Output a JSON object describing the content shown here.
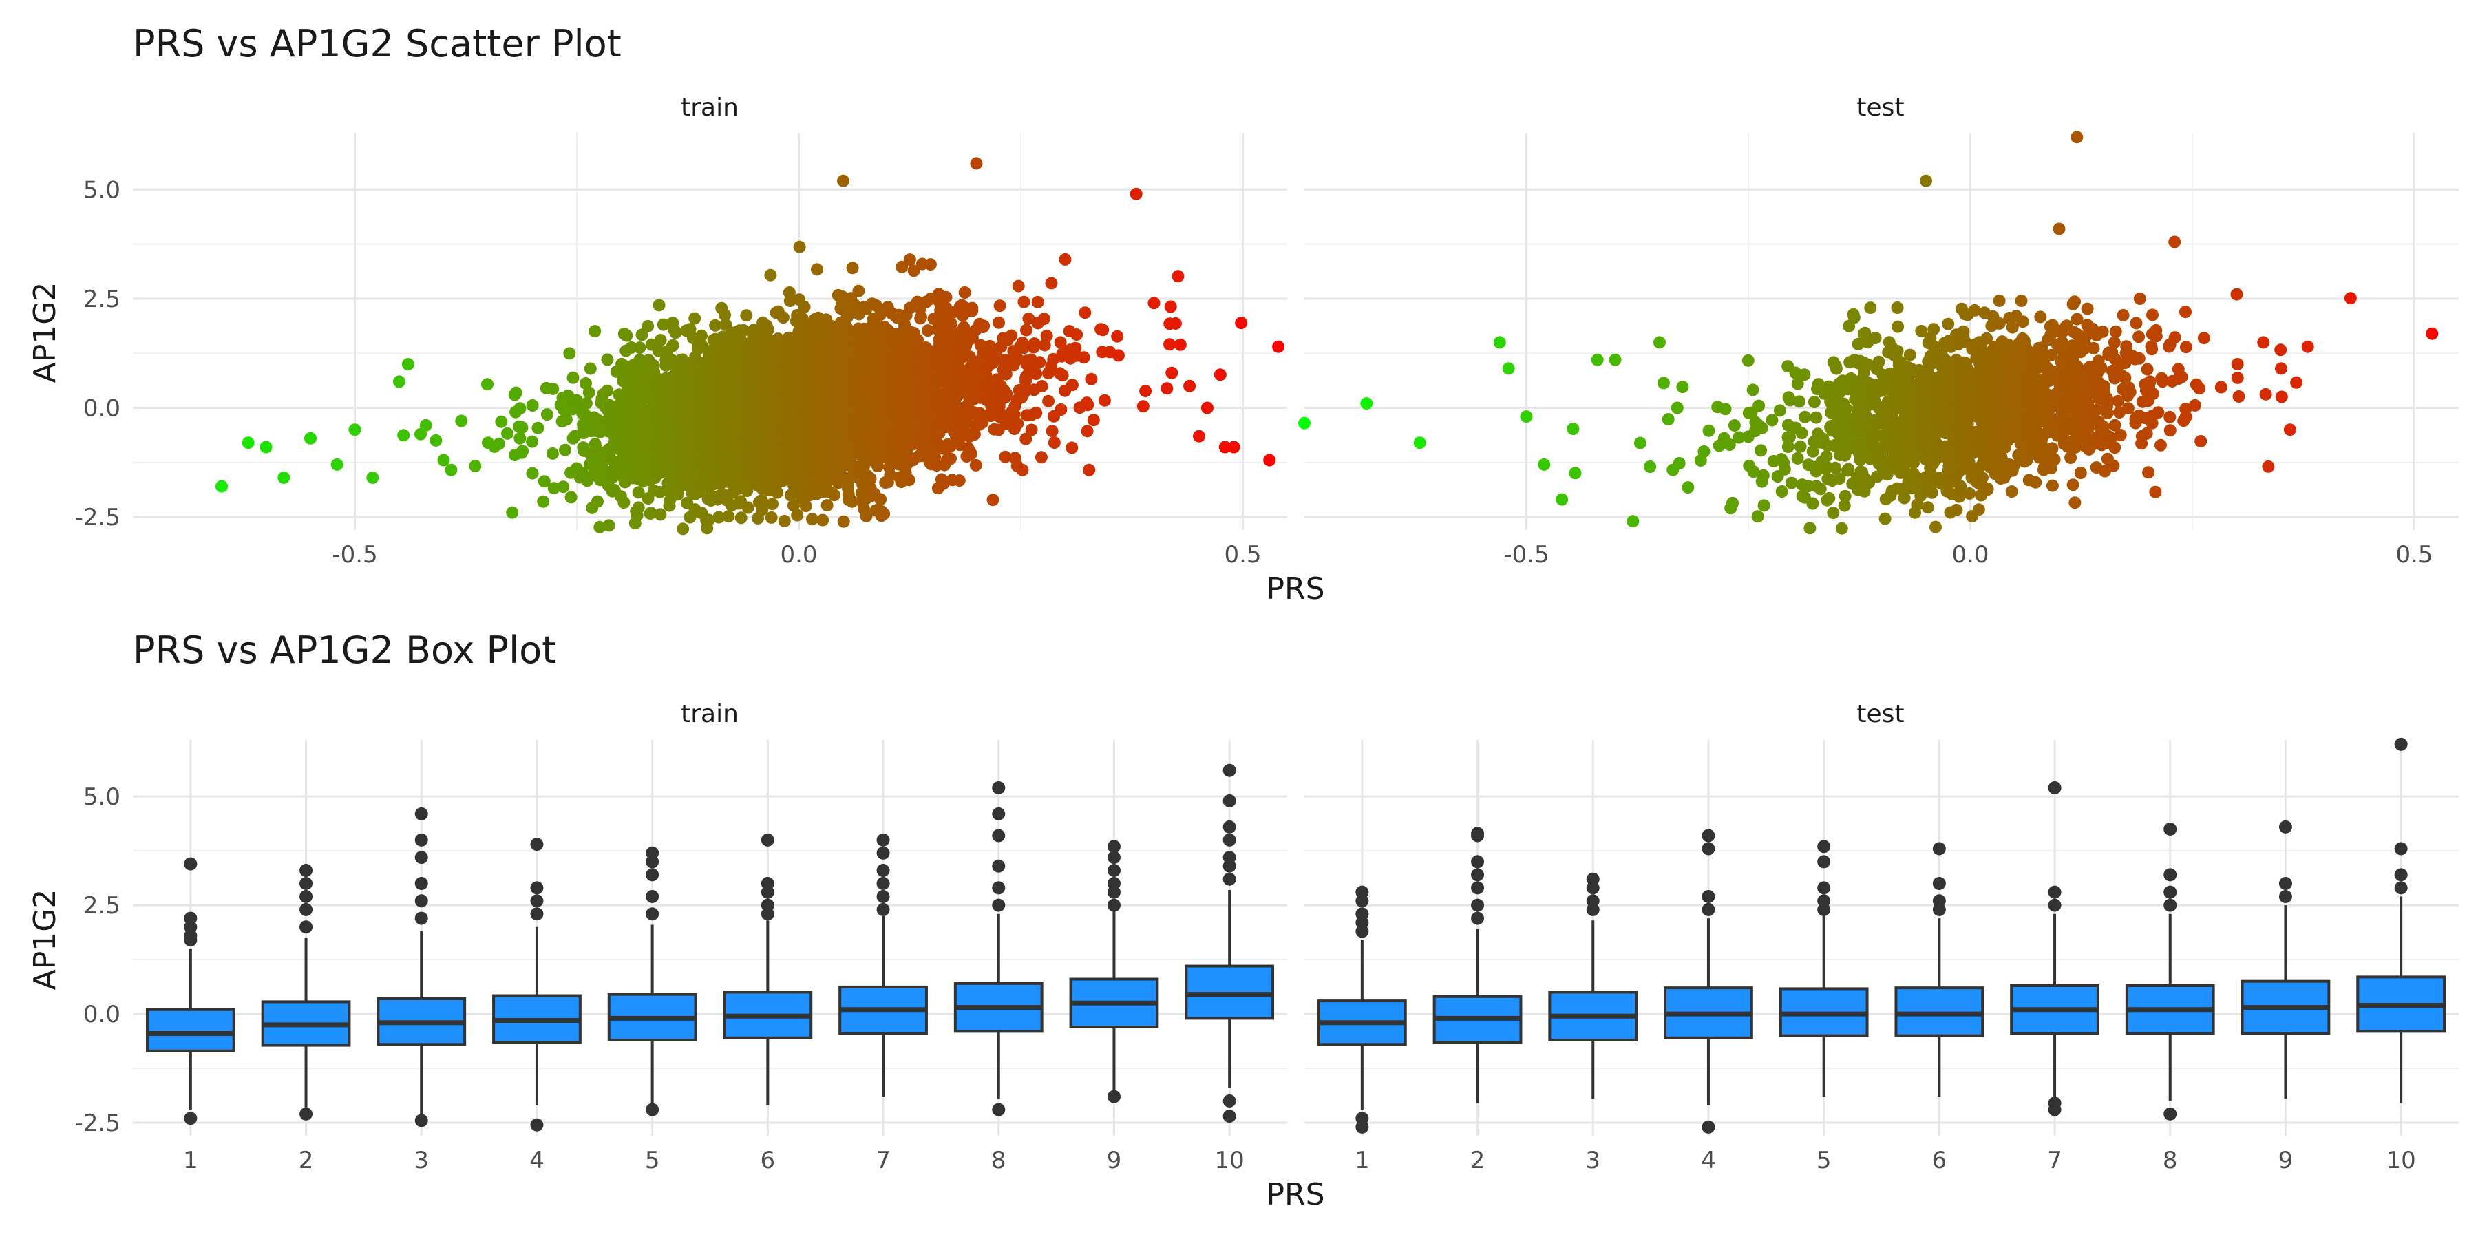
{
  "chart_data": [
    {
      "type": "scatter",
      "title": "PRS vs AP1G2 Scatter Plot",
      "xlabel": "PRS",
      "ylabel": "AP1G2",
      "xlim": [
        -0.75,
        0.55
      ],
      "ylim": [
        -2.8,
        6.3
      ],
      "xticks": [
        -0.5,
        0.0,
        0.5
      ],
      "xtick_labels": [
        "-0.5",
        "0.0",
        "0.5"
      ],
      "yticks": [
        -2.5,
        0.0,
        2.5,
        5.0
      ],
      "ytick_labels": [
        "-2.5",
        "0.0",
        "2.5",
        "5.0"
      ],
      "grid": true,
      "color_scale": {
        "low": "#00ff00",
        "high": "#ff0000",
        "mapped_to": "PRS"
      },
      "panels": [
        {
          "name": "train",
          "bulk": {
            "n_points": 5000,
            "x_mean": 0.0,
            "x_sd": 0.1,
            "y_mean": 0.0,
            "y_sd": 0.9
          },
          "points": [
            [
              -0.65,
              -1.8
            ],
            [
              -0.62,
              -0.8
            ],
            [
              -0.6,
              -0.9
            ],
            [
              -0.58,
              -1.6
            ],
            [
              -0.55,
              -0.7
            ],
            [
              -0.52,
              -1.3
            ],
            [
              -0.5,
              -0.5
            ],
            [
              -0.48,
              -1.6
            ],
            [
              -0.45,
              0.6
            ],
            [
              -0.44,
              1.0
            ],
            [
              -0.42,
              -0.4
            ],
            [
              -0.4,
              -1.2
            ],
            [
              -0.38,
              -0.3
            ],
            [
              -0.35,
              -0.8
            ],
            [
              -0.32,
              0.3
            ],
            [
              -0.3,
              -1.5
            ],
            [
              0.05,
              5.2
            ],
            [
              0.2,
              5.6
            ],
            [
              0.3,
              3.4
            ],
            [
              0.38,
              4.9
            ],
            [
              0.34,
              1.8
            ],
            [
              0.36,
              1.2
            ],
            [
              0.4,
              2.4
            ],
            [
              0.42,
              0.8
            ],
            [
              0.44,
              0.5
            ],
            [
              0.46,
              0.0
            ],
            [
              0.48,
              -0.9
            ],
            [
              0.49,
              -0.9
            ],
            [
              0.53,
              -1.2
            ],
            [
              0.54,
              1.4
            ]
          ]
        },
        {
          "name": "test",
          "bulk": {
            "n_points": 1500,
            "x_mean": 0.0,
            "x_sd": 0.1,
            "y_mean": 0.0,
            "y_sd": 0.9
          },
          "points": [
            [
              -0.75,
              -0.35
            ],
            [
              -0.68,
              0.1
            ],
            [
              -0.62,
              -0.8
            ],
            [
              -0.53,
              1.5
            ],
            [
              -0.52,
              0.9
            ],
            [
              -0.5,
              -0.2
            ],
            [
              -0.48,
              -1.3
            ],
            [
              -0.46,
              -2.1
            ],
            [
              -0.42,
              1.1
            ],
            [
              -0.4,
              1.1
            ],
            [
              -0.38,
              -2.6
            ],
            [
              -0.35,
              1.5
            ],
            [
              -0.33,
              0.0
            ],
            [
              -0.3,
              -1.0
            ],
            [
              -0.27,
              -2.3
            ],
            [
              -0.05,
              5.2
            ],
            [
              0.12,
              6.2
            ],
            [
              0.1,
              4.1
            ],
            [
              0.23,
              3.8
            ],
            [
              0.3,
              2.6
            ],
            [
              0.33,
              1.5
            ],
            [
              0.35,
              0.9
            ],
            [
              0.38,
              1.4
            ],
            [
              0.36,
              -0.5
            ],
            [
              0.52,
              1.7
            ]
          ]
        }
      ]
    },
    {
      "type": "box",
      "title": "PRS vs AP1G2 Box Plot",
      "xlabel": "PRS",
      "ylabel": "AP1G2",
      "categories": [
        "1",
        "2",
        "3",
        "4",
        "5",
        "6",
        "7",
        "8",
        "9",
        "10"
      ],
      "ylim": [
        -2.8,
        6.3
      ],
      "yticks": [
        -2.5,
        0.0,
        2.5,
        5.0
      ],
      "ytick_labels": [
        "-2.5",
        "0.0",
        "2.5",
        "5.0"
      ],
      "grid": true,
      "box_color": "#1e90ff",
      "panels": [
        {
          "name": "train",
          "boxes": [
            {
              "q1": -0.85,
              "median": -0.45,
              "q3": 0.1,
              "lower": -2.2,
              "upper": 1.5,
              "outliers": [
                -2.4,
                1.7,
                1.8,
                2.0,
                2.2,
                3.45
              ]
            },
            {
              "q1": -0.72,
              "median": -0.25,
              "q3": 0.28,
              "lower": -2.15,
              "upper": 1.75,
              "outliers": [
                -2.3,
                2.0,
                2.4,
                2.7,
                3.0,
                3.3
              ]
            },
            {
              "q1": -0.7,
              "median": -0.2,
              "q3": 0.35,
              "lower": -2.3,
              "upper": 1.9,
              "outliers": [
                -2.45,
                2.2,
                2.6,
                3.0,
                3.6,
                4.0,
                4.6
              ]
            },
            {
              "q1": -0.65,
              "median": -0.15,
              "q3": 0.42,
              "lower": -2.1,
              "upper": 2.0,
              "outliers": [
                -2.55,
                2.3,
                2.6,
                2.9,
                3.9
              ]
            },
            {
              "q1": -0.6,
              "median": -0.1,
              "q3": 0.45,
              "lower": -2.05,
              "upper": 2.05,
              "outliers": [
                -2.2,
                2.3,
                2.7,
                3.2,
                3.5,
                3.7
              ]
            },
            {
              "q1": -0.55,
              "median": -0.05,
              "q3": 0.5,
              "lower": -2.1,
              "upper": 2.15,
              "outliers": [
                2.3,
                2.5,
                2.8,
                3.0,
                4.0
              ]
            },
            {
              "q1": -0.45,
              "median": 0.1,
              "q3": 0.62,
              "lower": -1.9,
              "upper": 2.25,
              "outliers": [
                2.4,
                2.7,
                3.0,
                3.3,
                3.7,
                4.0
              ]
            },
            {
              "q1": -0.4,
              "median": 0.15,
              "q3": 0.7,
              "lower": -1.95,
              "upper": 2.3,
              "outliers": [
                -2.2,
                2.5,
                2.9,
                3.4,
                4.1,
                4.6,
                5.2
              ]
            },
            {
              "q1": -0.3,
              "median": 0.25,
              "q3": 0.8,
              "lower": -1.75,
              "upper": 2.4,
              "outliers": [
                -1.9,
                2.5,
                2.8,
                3.0,
                3.3,
                3.6,
                3.85
              ]
            },
            {
              "q1": -0.1,
              "median": 0.45,
              "q3": 1.1,
              "lower": -1.7,
              "upper": 2.85,
              "outliers": [
                -2.0,
                -2.35,
                3.1,
                3.4,
                3.6,
                4.0,
                4.3,
                4.9,
                5.6
              ]
            }
          ]
        },
        {
          "name": "test",
          "boxes": [
            {
              "q1": -0.7,
              "median": -0.2,
              "q3": 0.3,
              "lower": -2.2,
              "upper": 1.7,
              "outliers": [
                -2.4,
                -2.6,
                1.9,
                2.1,
                2.3,
                2.6,
                2.8
              ]
            },
            {
              "q1": -0.65,
              "median": -0.1,
              "q3": 0.4,
              "lower": -2.05,
              "upper": 1.95,
              "outliers": [
                2.2,
                2.5,
                2.9,
                3.2,
                3.5,
                4.1,
                4.15
              ]
            },
            {
              "q1": -0.6,
              "median": -0.05,
              "q3": 0.5,
              "lower": -1.95,
              "upper": 2.15,
              "outliers": [
                2.4,
                2.6,
                2.9,
                3.1
              ]
            },
            {
              "q1": -0.55,
              "median": 0.0,
              "q3": 0.6,
              "lower": -2.1,
              "upper": 2.2,
              "outliers": [
                -2.6,
                2.4,
                2.7,
                3.8,
                4.1
              ]
            },
            {
              "q1": -0.5,
              "median": 0.0,
              "q3": 0.58,
              "lower": -1.9,
              "upper": 2.25,
              "outliers": [
                2.4,
                2.6,
                2.9,
                3.5,
                3.85
              ]
            },
            {
              "q1": -0.5,
              "median": 0.0,
              "q3": 0.6,
              "lower": -1.9,
              "upper": 2.2,
              "outliers": [
                2.4,
                2.6,
                3.0,
                3.8
              ]
            },
            {
              "q1": -0.45,
              "median": 0.1,
              "q3": 0.65,
              "lower": -1.95,
              "upper": 2.3,
              "outliers": [
                -2.05,
                -2.2,
                2.5,
                2.8,
                5.2
              ]
            },
            {
              "q1": -0.45,
              "median": 0.1,
              "q3": 0.65,
              "lower": -2.0,
              "upper": 2.3,
              "outliers": [
                -2.3,
                2.5,
                2.8,
                3.2,
                4.25
              ]
            },
            {
              "q1": -0.45,
              "median": 0.15,
              "q3": 0.75,
              "lower": -1.95,
              "upper": 2.5,
              "outliers": [
                2.7,
                3.0,
                4.3
              ]
            },
            {
              "q1": -0.4,
              "median": 0.2,
              "q3": 0.85,
              "lower": -2.05,
              "upper": 2.7,
              "outliers": [
                2.9,
                3.2,
                3.8,
                6.2
              ]
            }
          ]
        }
      ]
    }
  ]
}
